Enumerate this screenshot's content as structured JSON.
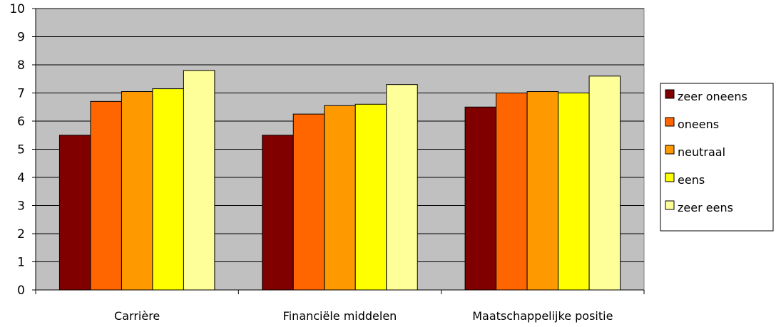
{
  "chart_data": {
    "type": "bar",
    "categories": [
      "Carrière",
      "Financiële middelen",
      "Maatschappelijke positie"
    ],
    "series": [
      {
        "name": "zeer oneens",
        "color": "#800000",
        "values": [
          5.5,
          5.5,
          6.5
        ]
      },
      {
        "name": "oneens",
        "color": "#FF6600",
        "values": [
          6.7,
          6.25,
          7.0
        ]
      },
      {
        "name": "neutraal",
        "color": "#FF9900",
        "values": [
          7.05,
          6.55,
          7.05
        ]
      },
      {
        "name": "eens",
        "color": "#FFFF00",
        "values": [
          7.15,
          6.6,
          7.0
        ]
      },
      {
        "name": "zeer eens",
        "color": "#FFFF99",
        "values": [
          7.8,
          7.3,
          7.6
        ]
      }
    ],
    "y_ticks": [
      "0",
      "1",
      "2",
      "3",
      "4",
      "5",
      "6",
      "7",
      "8",
      "9",
      "10"
    ],
    "ylim": [
      0,
      10
    ],
    "grid": true,
    "plot_background": "#C0C0C0",
    "legend_position": "right",
    "title": "",
    "xlabel": "",
    "ylabel": ""
  }
}
